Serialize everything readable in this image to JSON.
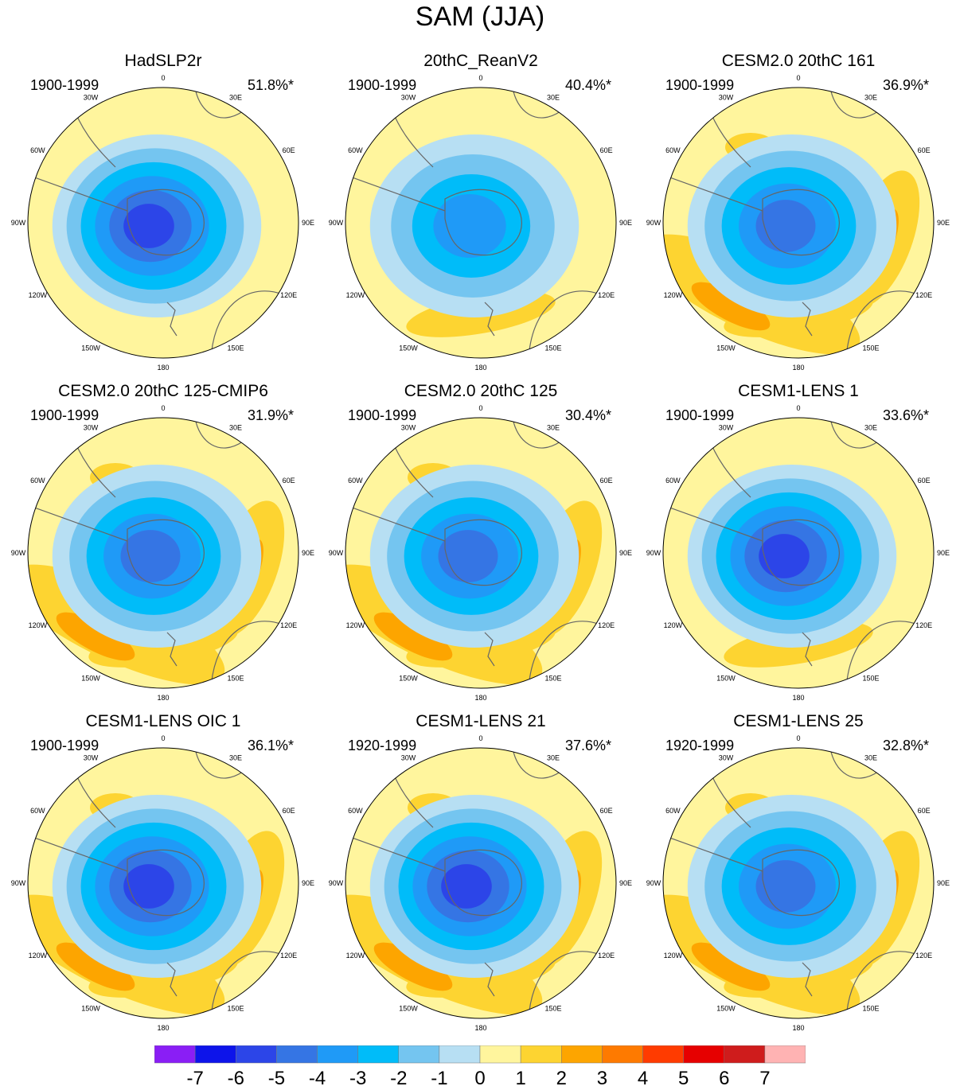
{
  "title": "SAM (JJA)",
  "colors": {
    "neutral": "#fff59d",
    "ocean_hint": "#b7dff3",
    "coast": "#666666",
    "neg1": "#b7dff3",
    "neg2": "#74c5f0",
    "neg3": "#00bcf9",
    "neg4": "#1f9af7",
    "neg5": "#3575e4",
    "neg6": "#2c45e8",
    "neg7": "#0d14ea",
    "pos1": "#fdd431",
    "pos2": "#fda500",
    "pos3": "#fe7a00"
  },
  "lon_labels": [
    "0",
    "30E",
    "60E",
    "90E",
    "120E",
    "150E",
    "180",
    "150W",
    "120W",
    "90W",
    "60W",
    "30W"
  ],
  "panels": [
    {
      "title": "HadSLP2r",
      "period": "1900-1999",
      "pct": "51.8%*",
      "max_neg": 6,
      "pos_lobes": 0
    },
    {
      "title": "20thC_ReanV2",
      "period": "1900-1999",
      "pct": "40.4%*",
      "max_neg": 4,
      "pos_lobes": 1
    },
    {
      "title": "CESM2.0 20thC 161",
      "period": "1900-1999",
      "pct": "36.9%*",
      "max_neg": 5,
      "pos_lobes": 2
    },
    {
      "title": "CESM2.0 20thC 125-CMIP6",
      "period": "1900-1999",
      "pct": "31.9%*",
      "max_neg": 5,
      "pos_lobes": 2
    },
    {
      "title": "CESM2.0 20thC 125",
      "period": "1900-1999",
      "pct": "30.4%*",
      "max_neg": 5,
      "pos_lobes": 2
    },
    {
      "title": "CESM1-LENS 1",
      "period": "1900-1999",
      "pct": "33.6%*",
      "max_neg": 6,
      "pos_lobes": 1
    },
    {
      "title": "CESM1-LENS OIC 1",
      "period": "1900-1999",
      "pct": "36.1%*",
      "max_neg": 6,
      "pos_lobes": 2
    },
    {
      "title": "CESM1-LENS 21",
      "period": "1920-1999",
      "pct": "37.6%*",
      "max_neg": 6,
      "pos_lobes": 2
    },
    {
      "title": "CESM1-LENS 25",
      "period": "1920-1999",
      "pct": "32.8%*",
      "max_neg": 5,
      "pos_lobes": 2
    }
  ],
  "colorbar": {
    "colors": [
      "#8a1ef5",
      "#0d14ea",
      "#2c45e8",
      "#3575e4",
      "#1f9af7",
      "#00bcf9",
      "#74c5f0",
      "#b7dff3",
      "#fff59d",
      "#fdd431",
      "#fda500",
      "#fe7a00",
      "#ff3b00",
      "#e60000",
      "#cf1c1c",
      "#ffb3b3"
    ],
    "labels": [
      "-7",
      "-6",
      "-5",
      "-4",
      "-3",
      "-2",
      "-1",
      "0",
      "1",
      "2",
      "3",
      "4",
      "5",
      "6",
      "7"
    ]
  }
}
